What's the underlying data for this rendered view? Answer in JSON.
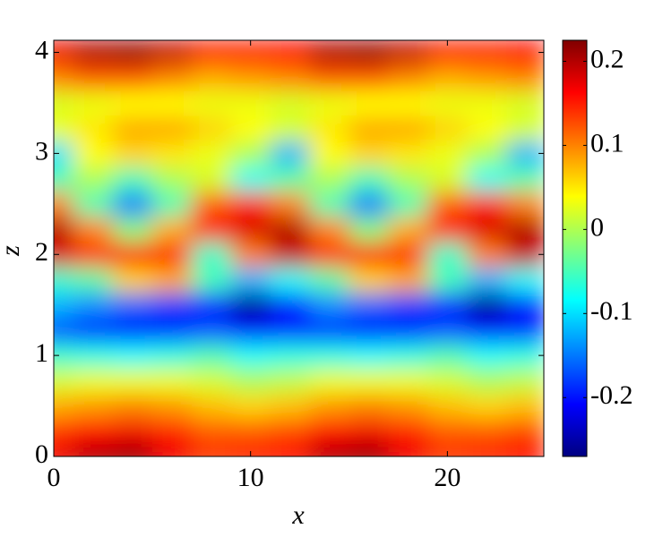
{
  "chart_data": {
    "type": "heatmap",
    "colormap": "jet",
    "xlabel": "x",
    "ylabel": "z",
    "x": [
      0,
      2,
      4,
      6,
      8,
      10,
      12,
      14,
      16,
      18,
      20,
      22,
      24
    ],
    "y": [
      0,
      0.25,
      0.5,
      0.75,
      1.0,
      1.25,
      1.5,
      1.75,
      2.0,
      2.25,
      2.5,
      2.75,
      3.0,
      3.25,
      3.5,
      3.75,
      4.0
    ],
    "values": [
      [
        0.17,
        0.2,
        0.21,
        0.17,
        0.14,
        0.15,
        0.16,
        0.2,
        0.21,
        0.17,
        0.14,
        0.15,
        0.16
      ],
      [
        0.14,
        0.16,
        0.17,
        0.15,
        0.12,
        0.12,
        0.13,
        0.16,
        0.17,
        0.15,
        0.12,
        0.12,
        0.13
      ],
      [
        0.08,
        0.09,
        0.1,
        0.09,
        0.07,
        0.06,
        0.07,
        0.09,
        0.1,
        0.09,
        0.07,
        0.06,
        0.07
      ],
      [
        0.02,
        0.03,
        0.03,
        0.03,
        0.02,
        0.0,
        0.01,
        0.03,
        0.03,
        0.03,
        0.02,
        0.0,
        0.01
      ],
      [
        -0.06,
        -0.07,
        -0.08,
        -0.07,
        -0.05,
        -0.08,
        -0.07,
        -0.07,
        -0.08,
        -0.07,
        -0.05,
        -0.08,
        -0.07
      ],
      [
        -0.17,
        -0.19,
        -0.2,
        -0.19,
        -0.17,
        -0.2,
        -0.19,
        -0.19,
        -0.2,
        -0.19,
        -0.17,
        -0.2,
        -0.19
      ],
      [
        -0.12,
        -0.14,
        -0.16,
        -0.18,
        -0.2,
        -0.26,
        -0.2,
        -0.14,
        -0.16,
        -0.18,
        -0.2,
        -0.26,
        -0.2
      ],
      [
        -0.06,
        -0.04,
        0.06,
        0.08,
        -0.05,
        -0.12,
        -0.08,
        -0.04,
        0.06,
        0.08,
        -0.05,
        -0.12,
        -0.08
      ],
      [
        0.18,
        0.14,
        0.16,
        0.15,
        -0.06,
        0.1,
        0.19,
        0.14,
        0.16,
        0.15,
        -0.06,
        0.1,
        0.19
      ],
      [
        0.2,
        0.1,
        -0.02,
        0.08,
        0.15,
        0.18,
        0.2,
        0.1,
        -0.02,
        0.08,
        0.15,
        0.18,
        0.2
      ],
      [
        0.1,
        -0.05,
        -0.15,
        -0.05,
        0.12,
        0.15,
        0.1,
        -0.05,
        -0.15,
        -0.05,
        0.12,
        0.15,
        0.1
      ],
      [
        -0.05,
        0.0,
        -0.05,
        0.0,
        0.02,
        -0.08,
        -0.04,
        0.0,
        -0.05,
        0.0,
        0.02,
        -0.08,
        -0.04
      ],
      [
        -0.1,
        0.04,
        0.06,
        0.05,
        0.03,
        0.0,
        -0.12,
        0.04,
        0.06,
        0.05,
        0.03,
        0.0,
        -0.12
      ],
      [
        0.03,
        0.05,
        0.08,
        0.08,
        0.06,
        0.04,
        0.02,
        0.05,
        0.08,
        0.08,
        0.06,
        0.04,
        0.02
      ],
      [
        0.02,
        0.03,
        0.04,
        0.04,
        0.03,
        0.03,
        0.02,
        0.03,
        0.04,
        0.04,
        0.03,
        0.03,
        0.02
      ],
      [
        0.1,
        0.12,
        0.12,
        0.1,
        0.08,
        0.09,
        0.1,
        0.12,
        0.12,
        0.1,
        0.08,
        0.09,
        0.1
      ],
      [
        0.17,
        0.2,
        0.21,
        0.19,
        0.15,
        0.15,
        0.16,
        0.2,
        0.21,
        0.19,
        0.15,
        0.15,
        0.16
      ]
    ],
    "xlim": [
      0,
      24.9
    ],
    "ylim": [
      0,
      4.12
    ],
    "xticks": [
      0,
      10,
      20
    ],
    "yticks": [
      0,
      1,
      2,
      3,
      4
    ],
    "clim": [
      -0.27,
      0.225
    ],
    "cticks": [
      -0.2,
      -0.1,
      0,
      0.1,
      0.2
    ]
  }
}
